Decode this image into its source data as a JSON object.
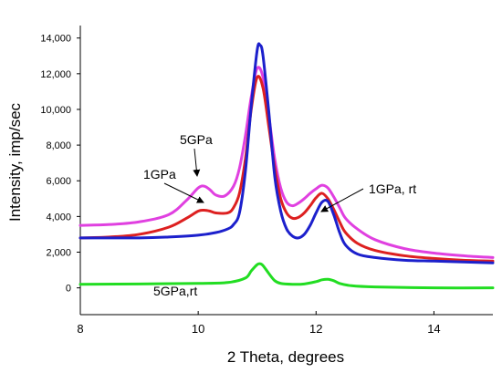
{
  "chart_data": {
    "type": "line",
    "title": "",
    "xlabel": "2 Theta, degrees",
    "ylabel": "Intensity, imp/sec",
    "xlim": [
      8,
      15
    ],
    "ylim": [
      -1500,
      14700
    ],
    "x_ticks": [
      8,
      10,
      12,
      14
    ],
    "y_ticks": [
      0,
      2000,
      4000,
      6000,
      8000,
      10000,
      12000,
      14000
    ],
    "y_tick_labels": [
      "0",
      "2,000",
      "4,000",
      "6,000",
      "8,000",
      "10,000",
      "12,000",
      "14,000"
    ],
    "grid": false,
    "legend": "none",
    "series": [
      {
        "name": "5GPa",
        "color": "#e040e0",
        "x": [
          8.0,
          8.5,
          9.0,
          9.5,
          9.8,
          10.0,
          10.1,
          10.2,
          10.3,
          10.45,
          10.6,
          10.7,
          10.8,
          10.9,
          11.0,
          11.1,
          11.2,
          11.3,
          11.4,
          11.5,
          11.6,
          11.7,
          11.8,
          11.9,
          12.0,
          12.1,
          12.2,
          12.3,
          12.4,
          12.5,
          12.7,
          13.0,
          13.5,
          14.0,
          14.5,
          15.0
        ],
        "y": [
          3500,
          3550,
          3700,
          4100,
          4900,
          5600,
          5700,
          5500,
          5200,
          5150,
          5700,
          6700,
          8500,
          10700,
          12300,
          11800,
          9600,
          7200,
          5600,
          4800,
          4600,
          4750,
          5000,
          5300,
          5550,
          5750,
          5600,
          5100,
          4500,
          3900,
          3300,
          2700,
          2200,
          1950,
          1800,
          1700
        ]
      },
      {
        "name": "1GPa",
        "color": "#dd2020",
        "x": [
          8.0,
          8.5,
          9.0,
          9.5,
          9.8,
          10.0,
          10.1,
          10.2,
          10.3,
          10.5,
          10.6,
          10.7,
          10.8,
          10.9,
          11.0,
          11.1,
          11.2,
          11.3,
          11.4,
          11.5,
          11.6,
          11.7,
          11.8,
          11.9,
          12.0,
          12.1,
          12.2,
          12.3,
          12.4,
          12.5,
          12.7,
          13.0,
          13.5,
          14.0,
          14.5,
          15.0
        ],
        "y": [
          2800,
          2850,
          3000,
          3400,
          3900,
          4300,
          4350,
          4300,
          4200,
          4200,
          4500,
          5300,
          7200,
          10000,
          11800,
          11200,
          9000,
          6700,
          5000,
          4200,
          3900,
          3950,
          4200,
          4600,
          5050,
          5300,
          5000,
          4400,
          3700,
          3100,
          2500,
          2100,
          1800,
          1650,
          1550,
          1500
        ]
      },
      {
        "name": "1GPa, rt",
        "color": "#1c20cc",
        "x": [
          8.0,
          9.0,
          9.5,
          10.0,
          10.3,
          10.5,
          10.6,
          10.7,
          10.8,
          10.9,
          11.0,
          11.05,
          11.1,
          11.2,
          11.3,
          11.4,
          11.5,
          11.6,
          11.7,
          11.8,
          11.9,
          12.0,
          12.1,
          12.2,
          12.3,
          12.4,
          12.5,
          12.7,
          13.0,
          13.5,
          14.0,
          14.5,
          15.0
        ],
        "y": [
          2800,
          2800,
          2850,
          2950,
          3100,
          3300,
          3550,
          4200,
          6500,
          10200,
          13300,
          13600,
          13000,
          9800,
          6200,
          4300,
          3300,
          2900,
          2800,
          3000,
          3500,
          4200,
          4800,
          4850,
          4100,
          3100,
          2400,
          1900,
          1700,
          1550,
          1500,
          1450,
          1400
        ]
      },
      {
        "name": "5GPa,rt",
        "color": "#22dd22",
        "x": [
          8.0,
          9.0,
          10.0,
          10.5,
          10.8,
          10.9,
          11.0,
          11.05,
          11.1,
          11.2,
          11.3,
          11.4,
          11.6,
          11.8,
          12.0,
          12.1,
          12.2,
          12.3,
          12.4,
          12.6,
          13.0,
          14.0,
          15.0
        ],
        "y": [
          200,
          220,
          250,
          300,
          550,
          950,
          1300,
          1350,
          1250,
          800,
          400,
          250,
          200,
          220,
          350,
          450,
          480,
          400,
          250,
          120,
          50,
          0,
          0
        ]
      }
    ],
    "annotations": [
      {
        "text": "5GPa",
        "arrow_to": [
          10.0,
          5650
        ]
      },
      {
        "text": "1GPa",
        "arrow_to": [
          10.15,
          4350
        ]
      },
      {
        "text": "1GPa, rt",
        "arrow_to": [
          12.1,
          3900
        ]
      },
      {
        "text": "5GPa,rt"
      }
    ]
  }
}
